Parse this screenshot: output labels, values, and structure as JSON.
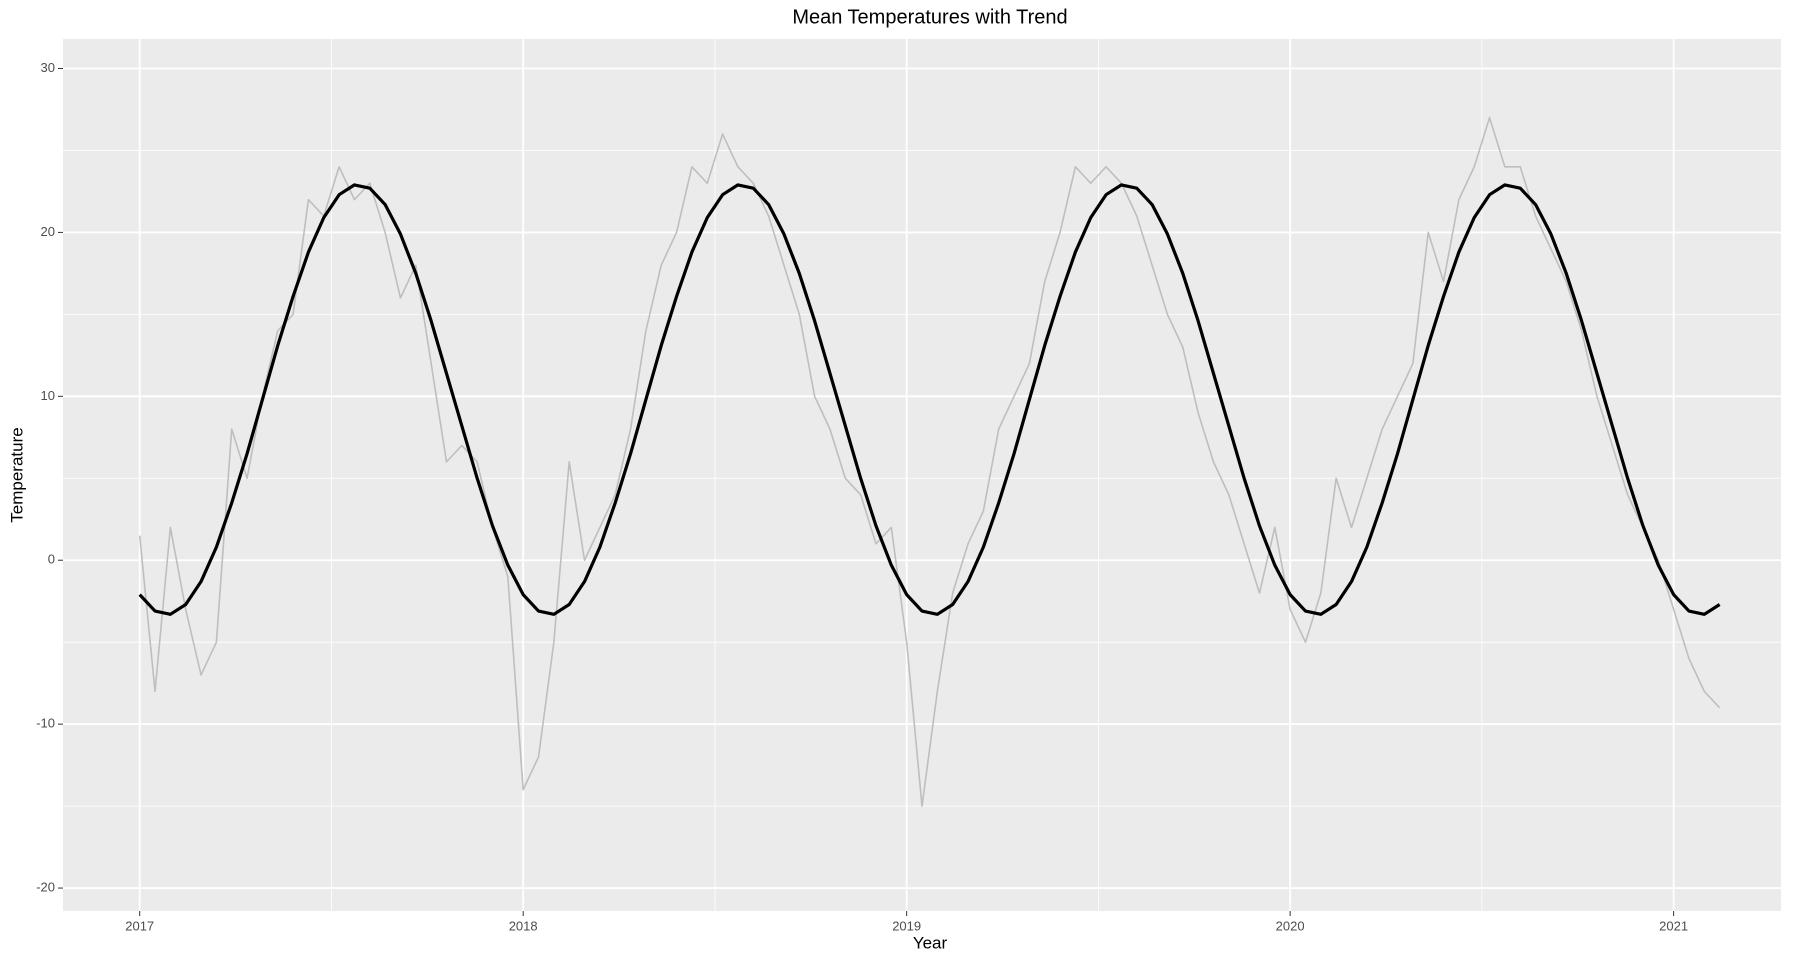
{
  "chart_data": {
    "type": "line",
    "title": "Mean Temperatures with Trend",
    "x_label": "Year",
    "y_label": "Temperature",
    "x": [
      2017.0,
      2017.04,
      2017.08,
      2017.12,
      2017.16,
      2017.2,
      2017.24,
      2017.28,
      2017.32,
      2017.36,
      2017.4,
      2017.44,
      2017.48,
      2017.52,
      2017.56,
      2017.6,
      2017.64,
      2017.68,
      2017.72,
      2017.76,
      2017.8,
      2017.84,
      2017.88,
      2017.92,
      2017.96,
      2018.0,
      2018.04,
      2018.08,
      2018.12,
      2018.16,
      2018.2,
      2018.24,
      2018.28,
      2018.32,
      2018.36,
      2018.4,
      2018.44,
      2018.48,
      2018.52,
      2018.56,
      2018.6,
      2018.64,
      2018.68,
      2018.72,
      2018.76,
      2018.8,
      2018.84,
      2018.88,
      2018.92,
      2018.96,
      2019.0,
      2019.04,
      2019.08,
      2019.12,
      2019.16,
      2019.2,
      2019.24,
      2019.28,
      2019.32,
      2019.36,
      2019.4,
      2019.44,
      2019.48,
      2019.52,
      2019.56,
      2019.6,
      2019.64,
      2019.68,
      2019.72,
      2019.76,
      2019.8,
      2019.84,
      2019.88,
      2019.92,
      2019.96,
      2020.0,
      2020.04,
      2020.08,
      2020.12,
      2020.16,
      2020.2,
      2020.24,
      2020.28,
      2020.32,
      2020.36,
      2020.4,
      2020.44,
      2020.48,
      2020.52,
      2020.56,
      2020.6,
      2020.64,
      2020.68,
      2020.72,
      2020.76,
      2020.8,
      2020.84,
      2020.88,
      2020.92,
      2020.96,
      2021.0,
      2021.04,
      2021.08,
      2021.12
    ],
    "series": [
      {
        "color": "#bebebe",
        "values": [
          1.5,
          -8,
          2,
          -3,
          -7,
          -5,
          8,
          5,
          10,
          14,
          15,
          22,
          21,
          24,
          22,
          23,
          20,
          16,
          18,
          12,
          6,
          7,
          6,
          2,
          -1,
          -14,
          -12,
          -5,
          6,
          0,
          2,
          4,
          8,
          14,
          18,
          20,
          24,
          23,
          26,
          24,
          23,
          21,
          18,
          15,
          10,
          8,
          5,
          4,
          1,
          2,
          -5,
          -15,
          -8,
          -2,
          1,
          3,
          8,
          10,
          12,
          17,
          20,
          24,
          23,
          24,
          23,
          21,
          18,
          15,
          13,
          9,
          6,
          4,
          1,
          -2,
          2,
          -3,
          -5,
          -2,
          5,
          2,
          5,
          8,
          10,
          12,
          20,
          17,
          22,
          24,
          27,
          24,
          24,
          21,
          19,
          17,
          14,
          10,
          7,
          4,
          2,
          0,
          -3,
          -6,
          -8,
          -9
        ]
      },
      {
        "color": "#000000",
        "values": [
          -2.1,
          -3.1,
          -3.3,
          -2.7,
          -1.3,
          0.8,
          3.5,
          6.5,
          9.8,
          13.1,
          16.1,
          18.8,
          20.9,
          22.3,
          22.9,
          22.7,
          21.7,
          19.9,
          17.5,
          14.6,
          11.4,
          8.2,
          5.0,
          2.1,
          -0.3,
          -2.1,
          -3.1,
          -3.3,
          -2.7,
          -1.3,
          0.8,
          3.5,
          6.5,
          9.8,
          13.1,
          16.1,
          18.8,
          20.9,
          22.3,
          22.9,
          22.7,
          21.7,
          19.9,
          17.5,
          14.6,
          11.4,
          8.2,
          5.0,
          2.1,
          -0.3,
          -2.1,
          -3.1,
          -3.3,
          -2.7,
          -1.3,
          0.8,
          3.5,
          6.5,
          9.8,
          13.1,
          16.1,
          18.8,
          20.9,
          22.3,
          22.9,
          22.7,
          21.7,
          19.9,
          17.5,
          14.6,
          11.4,
          8.2,
          5.0,
          2.1,
          -0.3,
          -2.1,
          -3.1,
          -3.3,
          -2.7,
          -1.3,
          0.8,
          3.5,
          6.5,
          9.8,
          13.1,
          16.1,
          18.8,
          20.9,
          22.3,
          22.9,
          22.7,
          21.7,
          19.9,
          17.5,
          14.6,
          11.4,
          8.2,
          5.0,
          2.1,
          -0.3,
          -2.1,
          -3.1,
          -3.3,
          -2.7
        ]
      }
    ],
    "xlim": [
      2016.8,
      2021.28
    ],
    "xticks": [
      2017,
      2018,
      2019,
      2020,
      2021
    ],
    "ylim": [
      -21.4,
      31.8
    ],
    "yticks": [
      -20,
      -10,
      0,
      10,
      20,
      30
    ],
    "grid": true,
    "panel_color": "#ebebeb"
  }
}
